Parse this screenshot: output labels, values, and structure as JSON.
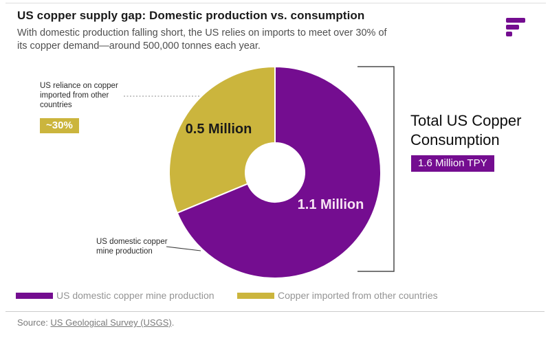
{
  "header": {
    "title": "US copper supply gap: Domestic production vs. consumption",
    "subtitle": "With domestic production falling short, the US relies on imports to meet over 30% of its copper demand—around 500,000 tonnes each year."
  },
  "logo": {
    "name": "brand-logo-f-bars",
    "color": "#740D90"
  },
  "chart_data": {
    "type": "pie",
    "subtype": "donut",
    "title": "US copper supply gap: Domestic production vs. consumption",
    "unit": "million tonnes per year (TPY)",
    "start_angle_deg": 0,
    "direction": "clockwise",
    "slices": [
      {
        "name": "US domestic copper mine production",
        "value": 1.1,
        "label": "1.1 Million",
        "color": "#740D90",
        "share_pct": 68.75
      },
      {
        "name": "Copper imported from other countries",
        "value": 0.5,
        "label": "0.5 Million",
        "color": "#CBB53D",
        "share_pct": 31.25
      }
    ],
    "total": {
      "label": "Total US Copper Consumption",
      "value": 1.6,
      "badge": "1.6 Million TPY"
    },
    "import_share_badge": "~30%"
  },
  "annotations": {
    "import_reliance": {
      "text": "US reliance on copper imported from other countries",
      "badge": "~30%"
    },
    "domestic_production": {
      "text": "US domestic copper mine production"
    }
  },
  "legend": [
    {
      "label": "US domestic copper mine production",
      "color": "#740D90"
    },
    {
      "label": "Copper imported from other countries",
      "color": "#CBB53D"
    }
  ],
  "source": {
    "prefix": "Source: ",
    "link": "US Geological Survey (USGS)",
    "suffix": "."
  }
}
